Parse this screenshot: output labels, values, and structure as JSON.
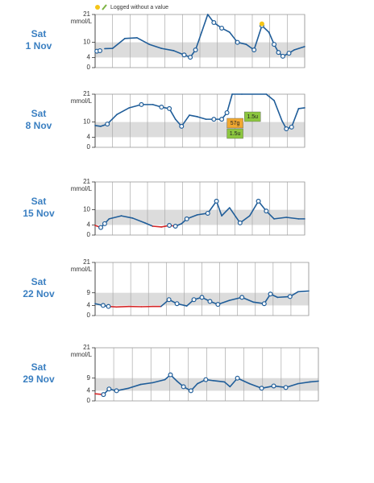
{
  "chart_data": [
    {
      "type": "line",
      "day": "Sat",
      "date": "1 Nov",
      "y_label": "mmol/L",
      "legend": "Logged without a value",
      "xlim": [
        0,
        24
      ],
      "xticks": [
        0,
        2,
        4,
        6,
        8,
        10,
        12,
        14,
        16,
        18,
        20,
        22,
        24
      ],
      "ylim": [
        0,
        21
      ],
      "yticks": [
        0,
        4,
        10,
        21
      ],
      "target": [
        4,
        10
      ],
      "color": "#1f5d99",
      "low_color": "#d62728",
      "unlogged_color": "#f5c518",
      "x": [
        0.2,
        0.55,
        0.8,
        1.1,
        2,
        3.4,
        4.8,
        6.2,
        7.6,
        9,
        10.2,
        10.9,
        11.5,
        12.2,
        12.9,
        13.6,
        14.5,
        15.4,
        16.3,
        17.3,
        18.2,
        19.1,
        19.9,
        20.5,
        21,
        21.5,
        22.2,
        22.8,
        24
      ],
      "values": [
        6.5,
        6.7,
        null,
        7.5,
        7.6,
        11.5,
        11.8,
        9.2,
        7.6,
        6.7,
        5,
        4.1,
        7,
        14,
        21,
        17.8,
        15.6,
        14,
        10,
        9.2,
        7,
        16.6,
        14,
        9.2,
        6,
        4.5,
        5.7,
        7,
        8.3
      ],
      "readings": {
        "x": [
          0.2,
          0.55,
          10.2,
          10.9,
          11.5,
          13.6,
          14.5,
          16.3,
          18.2,
          19.1,
          20.5,
          21,
          21.5,
          22.2
        ],
        "values": [
          6.5,
          6.7,
          5,
          4.1,
          7,
          17.8,
          15.6,
          10,
          7,
          16.6,
          9.2,
          6,
          4.5,
          5.7
        ]
      },
      "unlogged": {
        "x": [
          19.1
        ],
        "values": [
          17.3
        ]
      }
    },
    {
      "type": "line",
      "day": "Sat",
      "date": "8 Nov",
      "y_label": "mmol/L",
      "xlim": [
        0,
        24
      ],
      "xticks": [
        0,
        2,
        4,
        6,
        8,
        10,
        12,
        14,
        16,
        18,
        20,
        22,
        24
      ],
      "ylim": [
        0,
        21
      ],
      "yticks": [
        0,
        4,
        10,
        21
      ],
      "target": [
        4,
        10
      ],
      "color": "#1f5d99",
      "low_color": "#d62728",
      "x": [
        0,
        0.65,
        1.4,
        2.5,
        3.9,
        5.3,
        6.6,
        7.6,
        8.5,
        9.2,
        9.9,
        10.8,
        11.7,
        12.7,
        13.6,
        14.5,
        15.1,
        15.7,
        16.8,
        19.6,
        20.5,
        21.4,
        21.9,
        22.5,
        23.3,
        24
      ],
      "values": [
        8.6,
        8.3,
        9.2,
        13,
        15.6,
        16.9,
        16.9,
        15.9,
        15.3,
        11.1,
        8.3,
        12.7,
        12.1,
        11.1,
        11.1,
        11.1,
        13.7,
        21,
        21,
        21,
        18.5,
        10.5,
        7.3,
        8,
        15.3,
        15.6
      ],
      "readings": {
        "x": [
          1.4,
          5.3,
          7.6,
          8.5,
          9.9,
          13.6,
          14.5,
          15.1,
          21.9,
          22.5
        ],
        "values": [
          9.2,
          16.9,
          15.9,
          15.3,
          8.3,
          11.1,
          11.1,
          13.7,
          7.3,
          8
        ]
      },
      "annotations": [
        {
          "label": "57g",
          "x": 15.1,
          "color": "#f0a830"
        },
        {
          "label": "1.5u",
          "x": 15.1,
          "color": "#8cc63f"
        },
        {
          "label": "1.5u",
          "x": 17.1,
          "color": "#8cc63f"
        }
      ]
    },
    {
      "type": "line",
      "day": "Sat",
      "date": "15 Nov",
      "y_label": "mmol/L",
      "xlim": [
        0,
        24
      ],
      "xticks": [
        0,
        2,
        4,
        6,
        8,
        10,
        12,
        14,
        16,
        18,
        20,
        22,
        24
      ],
      "ylim": [
        0,
        21
      ],
      "yticks": [
        0,
        4,
        10,
        21
      ],
      "target": [
        4,
        10
      ],
      "color": "#1f5d99",
      "low_color": "#d62728",
      "x": [
        0,
        0.65,
        1.1,
        1.6,
        3,
        4.3,
        5.7,
        6.6,
        7.6,
        8.5,
        9.2,
        9.9,
        10.5,
        11.7,
        12.9,
        13.9,
        14.5,
        15.4,
        16.6,
        17.7,
        18.7,
        19.6,
        20.5,
        21.9,
        23.3,
        24
      ],
      "values": [
        3.8,
        3,
        4.5,
        6.4,
        7.6,
        6.7,
        4.8,
        3.5,
        3.2,
        3.8,
        3.5,
        4.5,
        6.4,
        8,
        8.6,
        13.4,
        7.6,
        10.8,
        4.8,
        7.6,
        13.4,
        9.5,
        6.4,
        7,
        6.4,
        6.4
      ],
      "readings": {
        "x": [
          0.65,
          1.1,
          8.5,
          9.2,
          10.5,
          12.9,
          13.9,
          16.6,
          18.7,
          19.6
        ],
        "values": [
          3,
          4.5,
          3.8,
          3.5,
          6.4,
          8.6,
          13.4,
          4.8,
          13.4,
          9.5
        ]
      }
    },
    {
      "type": "line",
      "day": "Sat",
      "date": "22 Nov",
      "y_label": "mmol/L",
      "xlim": [
        0,
        24
      ],
      "xticks": [
        0,
        2,
        4,
        6,
        8,
        10,
        12,
        14,
        16,
        18,
        20,
        22,
        24
      ],
      "ylim": [
        0,
        21
      ],
      "yticks": [
        0,
        4,
        9,
        21
      ],
      "target": [
        4,
        9
      ],
      "color": "#1f5d99",
      "low_color": "#d62728",
      "x": [
        0,
        0.9,
        1.5,
        2.4,
        3.8,
        5.2,
        6.5,
        7.4,
        8.3,
        9.2,
        10.3,
        11.1,
        12,
        12.9,
        13.8,
        15.1,
        16.5,
        17.8,
        19,
        19.7,
        20.5,
        21.9,
        22.8,
        24
      ],
      "values": [
        4.7,
        4,
        3.6,
        3.4,
        3.6,
        3.5,
        3.6,
        3.6,
        6.3,
        4.7,
        3.8,
        6.3,
        7.2,
        5.6,
        4.4,
        6,
        7.2,
        5.3,
        4.7,
        8.5,
        7.2,
        7.5,
        9.4,
        9.7
      ],
      "readings": {
        "x": [
          0.9,
          1.5,
          8.3,
          9.2,
          11.1,
          12,
          12.9,
          13.8,
          16.5,
          19,
          19.7,
          21.9
        ],
        "values": [
          4,
          3.6,
          6.3,
          4.7,
          6.3,
          7.2,
          5.6,
          4.4,
          7.2,
          4.7,
          8.5,
          7.5
        ]
      }
    },
    {
      "type": "line",
      "day": "Sat",
      "date": "29 Nov",
      "y_label": "mmol/L",
      "xlim": [
        0,
        24
      ],
      "xticks": [
        0,
        2,
        4,
        6,
        8,
        10,
        12,
        14,
        16,
        18,
        20,
        22,
        24
      ],
      "ylim": [
        0,
        21
      ],
      "yticks": [
        0,
        4,
        9,
        21
      ],
      "target": [
        4,
        9
      ],
      "color": "#1f5d99",
      "low_color": "#d62728",
      "x": [
        0,
        0.9,
        1.5,
        2.3,
        3.6,
        4.9,
        6.2,
        7.5,
        8.1,
        8.8,
        9.5,
        10.3,
        11,
        11.9,
        12.7,
        13.9,
        14.5,
        15.3,
        16.6,
        17.9,
        19.2,
        20.5,
        21.8,
        23.1,
        24
      ],
      "values": [
        2.8,
        2.5,
        4.7,
        4,
        5,
        6.5,
        7.2,
        8.4,
        10.3,
        7.8,
        5.6,
        4,
        6.8,
        8.4,
        8,
        7.5,
        5.6,
        9,
        6.8,
        5,
        5.9,
        5.3,
        6.8,
        7.5,
        7.8
      ],
      "readings": {
        "x": [
          0.9,
          1.5,
          2.3,
          8.1,
          9.5,
          10.3,
          11.9,
          15.3,
          17.9,
          19.2,
          20.5
        ],
        "values": [
          2.5,
          4.7,
          4,
          10.3,
          5.6,
          4,
          8.4,
          9,
          5,
          5.9,
          5.3
        ]
      }
    }
  ]
}
